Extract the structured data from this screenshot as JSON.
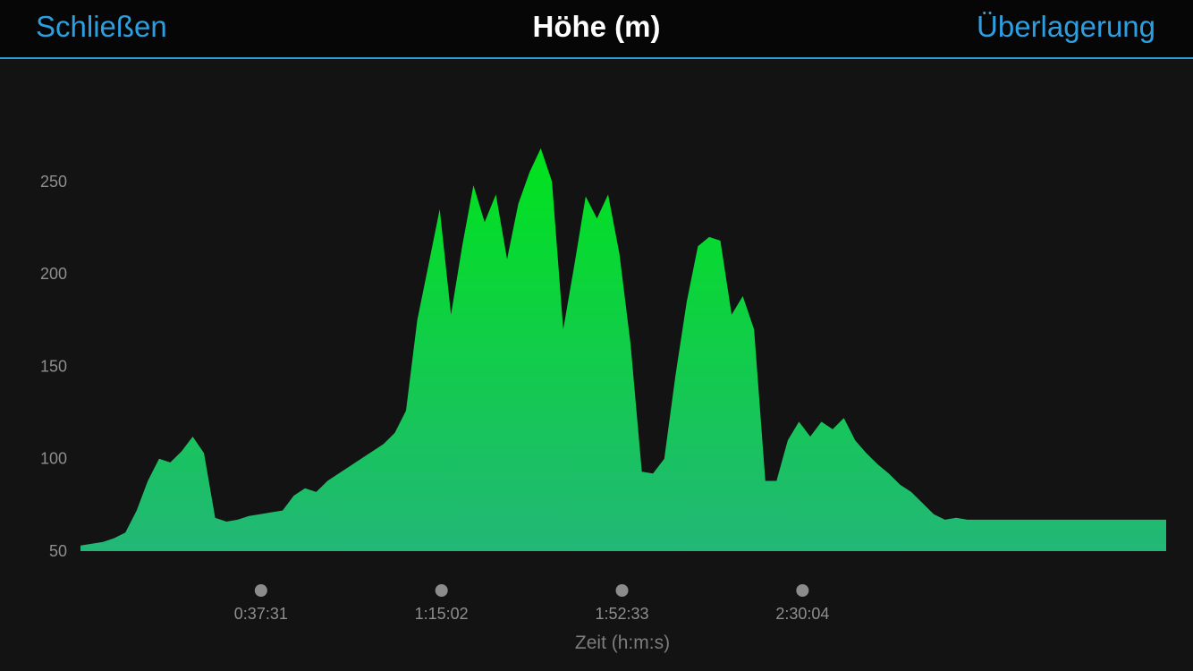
{
  "header": {
    "close_label": "Schließen",
    "title": "Höhe (m)",
    "overlay_label": "Überlagerung"
  },
  "colors": {
    "accent": "#2d9fe0",
    "background": "#131313",
    "fill_top": "#00e31c",
    "fill_bottom": "#22b777"
  },
  "chart_data": {
    "type": "area",
    "title": "Höhe (m)",
    "xlabel": "Zeit (h:m:s)",
    "ylabel": "",
    "x_unit": "seconds",
    "xlim": [
      0,
      13539
    ],
    "ylim": [
      50,
      280
    ],
    "yticks": [
      50,
      100,
      150,
      200,
      250
    ],
    "xticks": [
      {
        "value": 2251,
        "label": "0:37:31"
      },
      {
        "value": 4502,
        "label": "1:15:02"
      },
      {
        "value": 6753,
        "label": "1:52:33"
      },
      {
        "value": 9004,
        "label": "2:30:04"
      }
    ],
    "grid": false,
    "legend": "none",
    "x": [
      0,
      140,
      280,
      420,
      560,
      700,
      840,
      980,
      1120,
      1260,
      1400,
      1540,
      1680,
      1820,
      1960,
      2100,
      2240,
      2380,
      2520,
      2660,
      2800,
      2940,
      3080,
      3220,
      3360,
      3500,
      3640,
      3780,
      3920,
      4060,
      4200,
      4340,
      4480,
      4620,
      4760,
      4900,
      5040,
      5180,
      5320,
      5460,
      5600,
      5740,
      5880,
      6020,
      6160,
      6300,
      6440,
      6580,
      6720,
      6860,
      7000,
      7140,
      7280,
      7420,
      7560,
      7700,
      7840,
      7980,
      8120,
      8260,
      8400,
      8540,
      8680,
      8820,
      8960,
      9100,
      9240,
      9380,
      9520,
      9660,
      9800,
      9940,
      10080,
      10220,
      10360,
      10500,
      10640,
      10780,
      10920,
      11060,
      11200,
      11340,
      11480,
      11620,
      11760,
      11900,
      12040,
      12180,
      12320,
      12460,
      12600,
      12740,
      12880,
      13020,
      13160,
      13300,
      13539
    ],
    "y": [
      53,
      54,
      55,
      57,
      60,
      72,
      88,
      100,
      98,
      104,
      112,
      103,
      68,
      66,
      67,
      69,
      70,
      71,
      72,
      80,
      84,
      82,
      88,
      92,
      96,
      100,
      104,
      108,
      114,
      126,
      175,
      205,
      235,
      178,
      215,
      248,
      228,
      243,
      208,
      238,
      255,
      268,
      250,
      170,
      205,
      242,
      230,
      243,
      211,
      162,
      93,
      92,
      100,
      145,
      185,
      215,
      220,
      218,
      178,
      188,
      170,
      88,
      88,
      110,
      120,
      112,
      120,
      116,
      122,
      110,
      103,
      97,
      92,
      86,
      82,
      76,
      70,
      67,
      68,
      67,
      67,
      67,
      67,
      67,
      67,
      67,
      67,
      67,
      67,
      67,
      67,
      67,
      67,
      67,
      67,
      67,
      67
    ]
  }
}
